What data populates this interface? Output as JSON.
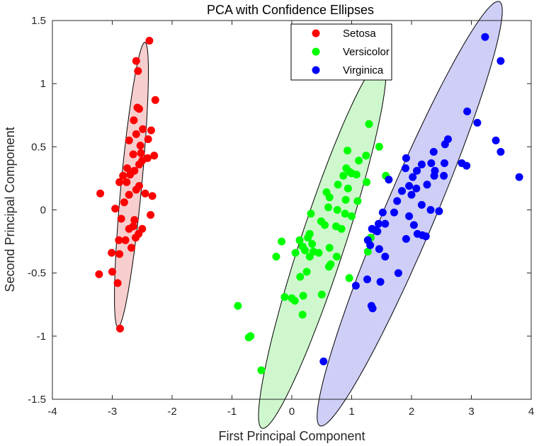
{
  "chart_data": {
    "type": "scatter",
    "title": "PCA with Confidence Ellipses",
    "xlabel": "First Principal Component",
    "ylabel": "Second Principal Component",
    "xlim": [
      -4,
      4
    ],
    "ylim": [
      -1.5,
      1.5
    ],
    "xticks": [
      "-4",
      "-3",
      "-2",
      "-1",
      "0",
      "1",
      "2",
      "3",
      "4"
    ],
    "yticks": [
      "-1.5",
      "-1",
      "-0.5",
      "0",
      "0.5",
      "1",
      "1.5"
    ],
    "legend_position": "top-right",
    "series": [
      {
        "name": "Setosa",
        "color": "#ff0000",
        "fill": "#f6c5c5",
        "ellipse": {
          "cx": -2.68,
          "cy": 0.2,
          "rx": 1.15,
          "ry": 0.17,
          "angle_deg": 78.5
        },
        "points": [
          [
            -2.38,
            1.34
          ],
          [
            -2.6,
            1.18
          ],
          [
            -2.57,
            1.1
          ],
          [
            -2.28,
            0.87
          ],
          [
            -2.58,
            0.81
          ],
          [
            -2.55,
            0.8
          ],
          [
            -2.64,
            0.71
          ],
          [
            -2.49,
            0.64
          ],
          [
            -2.35,
            0.63
          ],
          [
            -2.4,
            0.56
          ],
          [
            -2.6,
            0.6
          ],
          [
            -2.72,
            0.55
          ],
          [
            -2.53,
            0.51
          ],
          [
            -2.52,
            0.45
          ],
          [
            -2.65,
            0.44
          ],
          [
            -2.5,
            0.39
          ],
          [
            -2.41,
            0.41
          ],
          [
            -2.3,
            0.43
          ],
          [
            -2.55,
            0.36
          ],
          [
            -2.75,
            0.33
          ],
          [
            -2.63,
            0.31
          ],
          [
            -2.7,
            0.28
          ],
          [
            -2.82,
            0.27
          ],
          [
            -2.76,
            0.22
          ],
          [
            -2.55,
            0.19
          ],
          [
            -2.88,
            0.22
          ],
          [
            -2.6,
            0.16
          ],
          [
            -2.45,
            0.13
          ],
          [
            -2.33,
            0.11
          ],
          [
            -2.72,
            0.12
          ],
          [
            -2.8,
            0.06
          ],
          [
            -2.36,
            -0.04
          ],
          [
            -2.95,
            0.01
          ],
          [
            -3.2,
            0.13
          ],
          [
            -2.63,
            -0.08
          ],
          [
            -2.85,
            -0.07
          ],
          [
            -2.65,
            -0.13
          ],
          [
            -2.5,
            -0.15
          ],
          [
            -2.72,
            -0.15
          ],
          [
            -2.56,
            -0.19
          ],
          [
            -2.61,
            -0.22
          ],
          [
            -2.89,
            -0.24
          ],
          [
            -2.78,
            -0.24
          ],
          [
            -2.68,
            -0.3
          ],
          [
            -2.88,
            -0.35
          ],
          [
            -3.01,
            -0.34
          ],
          [
            -3.0,
            -0.49
          ],
          [
            -3.22,
            -0.51
          ],
          [
            -2.91,
            -0.58
          ],
          [
            -2.87,
            -0.94
          ]
        ]
      },
      {
        "name": "Versicolor",
        "color": "#00ff00",
        "fill": "#c5f6c5",
        "ellipse": {
          "cx": 0.51,
          "cy": -0.27,
          "rx": 1.78,
          "ry": 0.32,
          "angle_deg": 54.5
        },
        "points": [
          [
            1.29,
            0.68
          ],
          [
            1.46,
            0.5
          ],
          [
            0.93,
            0.47
          ],
          [
            1.24,
            0.43
          ],
          [
            1.12,
            0.39
          ],
          [
            0.91,
            0.33
          ],
          [
            0.97,
            0.3
          ],
          [
            1.0,
            0.29
          ],
          [
            1.08,
            0.28
          ],
          [
            0.86,
            0.27
          ],
          [
            1.57,
            0.27
          ],
          [
            1.25,
            0.22
          ],
          [
            0.77,
            0.2
          ],
          [
            0.94,
            0.17
          ],
          [
            0.58,
            0.14
          ],
          [
            0.63,
            0.1
          ],
          [
            0.9,
            0.08
          ],
          [
            1.1,
            0.07
          ],
          [
            0.61,
            0.02
          ],
          [
            0.76,
            0.0
          ],
          [
            0.89,
            -0.03
          ],
          [
            0.32,
            -0.03
          ],
          [
            1.0,
            -0.05
          ],
          [
            0.49,
            -0.09
          ],
          [
            0.55,
            -0.12
          ],
          [
            0.74,
            -0.13
          ],
          [
            0.83,
            -0.15
          ],
          [
            0.3,
            -0.19
          ],
          [
            0.27,
            -0.22
          ],
          [
            1.32,
            -0.22
          ],
          [
            0.13,
            -0.24
          ],
          [
            -0.17,
            -0.25
          ],
          [
            0.34,
            -0.27
          ],
          [
            0.18,
            -0.29
          ],
          [
            0.63,
            -0.3
          ],
          [
            0.22,
            -0.32
          ],
          [
            0.36,
            -0.33
          ],
          [
            1.27,
            -0.33
          ],
          [
            0.45,
            -0.34
          ],
          [
            0.06,
            -0.34
          ],
          [
            -0.26,
            -0.37
          ],
          [
            0.3,
            -0.37
          ],
          [
            0.75,
            -0.37
          ],
          [
            0.65,
            -0.43
          ],
          [
            0.25,
            -0.49
          ],
          [
            0.62,
            -0.45
          ],
          [
            0.96,
            -0.54
          ],
          [
            0.14,
            -0.53
          ],
          [
            -0.12,
            -0.69
          ],
          [
            -0.0,
            -0.7
          ],
          [
            0.05,
            -0.72
          ],
          [
            0.19,
            -0.68
          ],
          [
            0.5,
            -0.67
          ],
          [
            0.18,
            -0.83
          ],
          [
            -0.9,
            -0.76
          ],
          [
            -0.69,
            -1.0
          ],
          [
            -0.72,
            -1.01
          ],
          [
            -0.51,
            -1.27
          ]
        ]
      },
      {
        "name": "Virginica",
        "color": "#0000ff",
        "fill": "#c5c5f6",
        "ellipse": {
          "cx": 1.97,
          "cy": -0.03,
          "rx": 2.26,
          "ry": 0.34,
          "angle_deg": 47.5
        },
        "points": [
          [
            3.23,
            1.37
          ],
          [
            3.49,
            1.18
          ],
          [
            2.93,
            0.78
          ],
          [
            3.1,
            0.69
          ],
          [
            2.61,
            0.56
          ],
          [
            3.41,
            0.55
          ],
          [
            2.56,
            0.52
          ],
          [
            2.37,
            0.46
          ],
          [
            3.49,
            0.46
          ],
          [
            1.91,
            0.41
          ],
          [
            2.17,
            0.36
          ],
          [
            2.55,
            0.37
          ],
          [
            2.84,
            0.37
          ],
          [
            2.92,
            0.35
          ],
          [
            2.33,
            0.37
          ],
          [
            1.9,
            0.33
          ],
          [
            2.39,
            0.31
          ],
          [
            2.09,
            0.31
          ],
          [
            2.38,
            0.27
          ],
          [
            2.02,
            0.26
          ],
          [
            2.54,
            0.27
          ],
          [
            1.62,
            0.24
          ],
          [
            3.8,
            0.26
          ],
          [
            2.26,
            0.2
          ],
          [
            1.96,
            0.19
          ],
          [
            2.08,
            0.17
          ],
          [
            1.84,
            0.15
          ],
          [
            2.0,
            0.12
          ],
          [
            1.76,
            0.07
          ],
          [
            2.17,
            0.04
          ],
          [
            2.32,
            0.0
          ],
          [
            2.46,
            -0.01
          ],
          [
            1.52,
            -0.02
          ],
          [
            1.71,
            -0.02
          ],
          [
            1.96,
            -0.05
          ],
          [
            1.56,
            -0.11
          ],
          [
            2.04,
            -0.12
          ],
          [
            1.45,
            -0.11
          ],
          [
            1.34,
            -0.15
          ],
          [
            1.39,
            -0.16
          ],
          [
            1.43,
            -0.17
          ],
          [
            2.1,
            -0.19
          ],
          [
            2.18,
            -0.2
          ],
          [
            2.24,
            -0.21
          ],
          [
            1.91,
            -0.23
          ],
          [
            1.27,
            -0.24
          ],
          [
            1.31,
            -0.28
          ],
          [
            1.46,
            -0.31
          ],
          [
            1.56,
            -0.37
          ],
          [
            1.78,
            -0.5
          ],
          [
            1.26,
            -0.55
          ],
          [
            1.48,
            -0.57
          ],
          [
            1.07,
            -0.6
          ],
          [
            1.33,
            -0.76
          ],
          [
            1.35,
            -0.78
          ],
          [
            0.53,
            -1.2
          ]
        ]
      }
    ]
  }
}
